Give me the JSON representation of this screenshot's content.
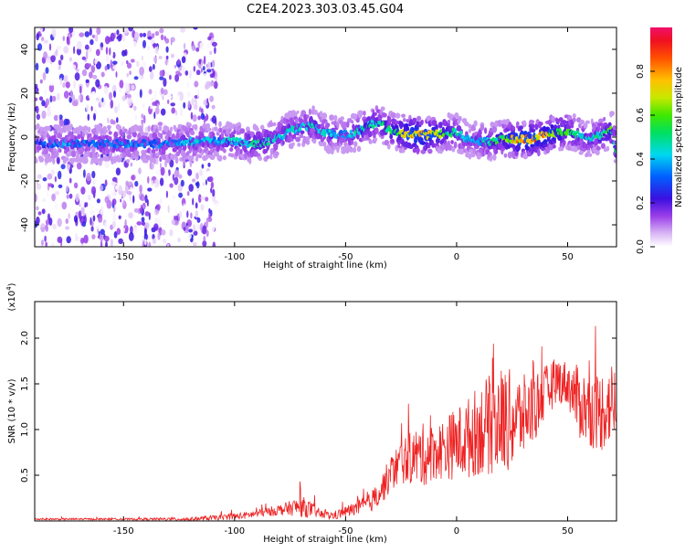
{
  "title": "C2E4.2023.303.03.45.G04",
  "chart_data": [
    {
      "type": "heatmap",
      "xlabel": "Height of straight line (km)",
      "ylabel": "Frequency (Hz)",
      "xlim": [
        -190,
        72
      ],
      "ylim": [
        -50,
        50
      ],
      "xticks": [
        -150,
        -100,
        -50,
        0,
        50
      ],
      "xtick_labels": [
        "-150",
        "-100",
        "-50",
        "0",
        "50"
      ],
      "yticks": [
        -40,
        -20,
        0,
        20,
        40
      ],
      "ytick_labels": [
        "-40",
        "-20",
        "0",
        "20",
        "40"
      ],
      "noise_region": {
        "x_from": -190,
        "x_to": -108,
        "y_from": -50,
        "y_to": 50,
        "amplitude": 0.2
      },
      "ridge": {
        "description_points_x": [
          -188,
          -175,
          -165,
          -150,
          -140,
          -128,
          -118,
          -108,
          -100,
          -95,
          -90,
          -85,
          -80,
          -75,
          -70,
          -65,
          -60,
          -55,
          -50,
          -45,
          -40,
          -35,
          -30,
          -25,
          -20,
          -15,
          -10,
          -5,
          0,
          5,
          10,
          15,
          20,
          25,
          30,
          35,
          40,
          45,
          50,
          55,
          60,
          65,
          70,
          72
        ],
        "freq_hz": [
          -3,
          -3,
          -3,
          -3,
          -3,
          -3,
          -2,
          -2,
          -2,
          -3,
          -3,
          -2,
          0,
          3,
          4,
          6,
          2,
          1,
          1,
          2,
          5,
          7,
          3,
          2,
          1,
          1,
          1,
          2,
          2,
          -1,
          -2,
          -2,
          -1,
          -1,
          -1,
          -1,
          1,
          2,
          3,
          1,
          -1,
          1,
          3,
          -7
        ],
        "amplitude": [
          0.3,
          0.4,
          0.35,
          0.4,
          0.35,
          0.4,
          0.45,
          0.4,
          0.5,
          0.5,
          0.55,
          0.5,
          0.45,
          0.5,
          0.45,
          0.5,
          0.45,
          0.45,
          0.4,
          0.5,
          0.55,
          0.5,
          0.6,
          0.7,
          0.9,
          0.85,
          0.8,
          0.6,
          0.5,
          0.4,
          0.45,
          0.5,
          0.6,
          0.75,
          0.9,
          0.85,
          0.8,
          0.7,
          0.6,
          0.5,
          0.45,
          0.55,
          0.6,
          0.5
        ]
      },
      "colorbar": {
        "label": "Normalized spectral amplitude",
        "range": [
          0,
          1
        ],
        "ticks": [
          0.0,
          0.2,
          0.4,
          0.6,
          0.8
        ],
        "tick_labels": [
          "0.0",
          "0.2",
          "0.4",
          "0.6",
          "0.8"
        ]
      }
    },
    {
      "type": "line",
      "xlabel": "Height of straight line (km)",
      "ylabel": "SNR (10 * v/v)",
      "scale_label": "(x10",
      "scale_exponent": "4",
      "scale_suffix": ")",
      "xlim": [
        -190,
        72
      ],
      "ylim": [
        0,
        2.4
      ],
      "xticks": [
        -150,
        -100,
        -50,
        0,
        50
      ],
      "xtick_labels": [
        "-150",
        "-100",
        "-50",
        "0",
        "50"
      ],
      "yticks": [
        0.5,
        1.0,
        1.5,
        2.0
      ],
      "ytick_labels": [
        "0.5",
        "1.0",
        "1.5",
        "2.0"
      ],
      "series": [
        {
          "color": "#ee2222",
          "envelope_x": [
            -190,
            -150,
            -120,
            -105,
            -95,
            -85,
            -80,
            -75,
            -70,
            -65,
            -60,
            -55,
            -50,
            -45,
            -40,
            -35,
            -30,
            -25,
            -20,
            -15,
            -10,
            -5,
            0,
            5,
            10,
            15,
            20,
            25,
            30,
            35,
            40,
            45,
            50,
            55,
            60,
            65,
            70,
            72
          ],
          "mean": [
            0.02,
            0.02,
            0.02,
            0.04,
            0.06,
            0.1,
            0.12,
            0.14,
            0.16,
            0.12,
            0.06,
            0.06,
            0.1,
            0.14,
            0.18,
            0.3,
            0.5,
            0.65,
            0.7,
            0.72,
            0.75,
            0.8,
            0.85,
            0.9,
            1.0,
            1.05,
            1.1,
            1.1,
            1.15,
            1.25,
            1.4,
            1.55,
            1.5,
            1.3,
            1.2,
            1.2,
            1.3,
            1.3
          ],
          "spread": [
            0.01,
            0.01,
            0.02,
            0.03,
            0.04,
            0.05,
            0.06,
            0.08,
            0.12,
            0.08,
            0.04,
            0.05,
            0.06,
            0.08,
            0.1,
            0.15,
            0.2,
            0.25,
            0.3,
            0.35,
            0.3,
            0.35,
            0.4,
            0.45,
            0.5,
            0.55,
            0.6,
            0.55,
            0.45,
            0.4,
            0.3,
            0.25,
            0.25,
            0.4,
            0.4,
            0.45,
            0.45,
            0.45
          ]
        }
      ]
    }
  ]
}
